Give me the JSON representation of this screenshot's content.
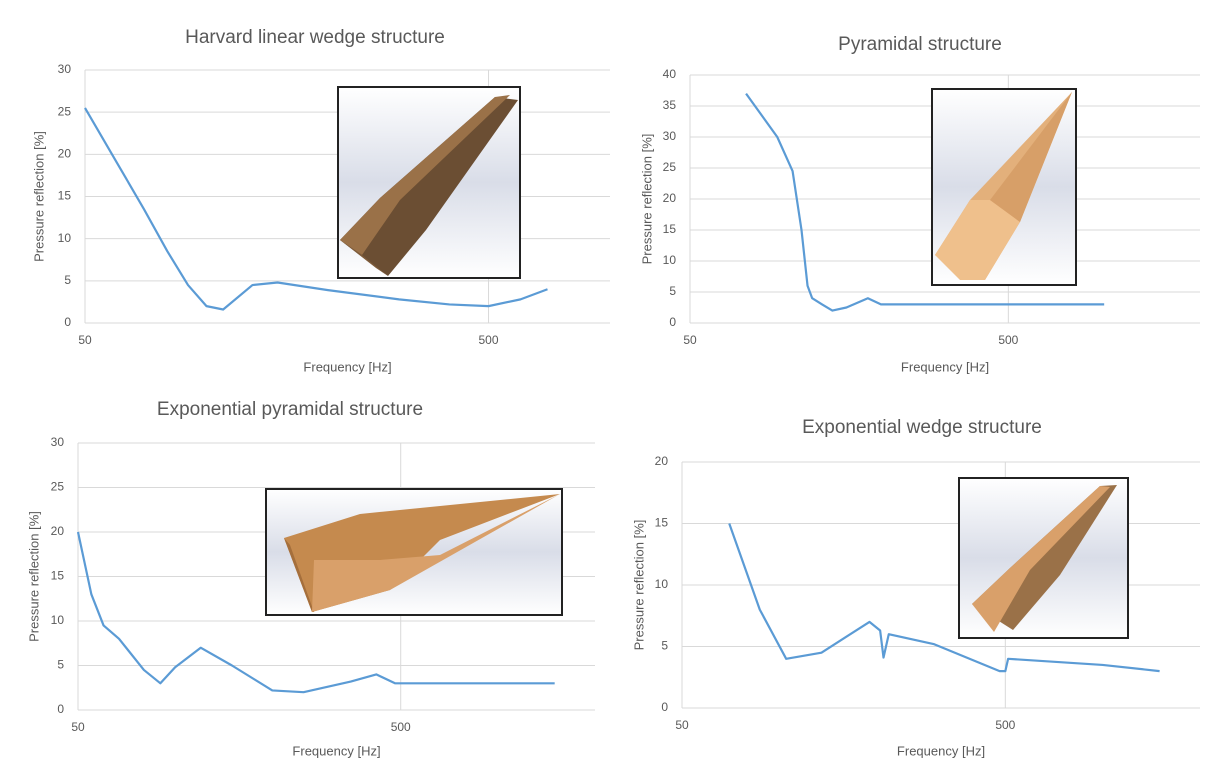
{
  "chart_data": [
    {
      "type": "line",
      "title": "Harvard linear wedge structure",
      "x_label": "Frequency [Hz]",
      "y_label": "Pressure reflection [%]",
      "log_x": true,
      "grid": true,
      "xlim": [
        50,
        1000
      ],
      "xticks": [
        50,
        500
      ],
      "ylim": [
        0,
        30
      ],
      "yticks": [
        0,
        5,
        10,
        15,
        20,
        25,
        30
      ],
      "series": [
        {
          "color": "#5b9bd5",
          "x": [
            50,
            60,
            70,
            80,
            90,
            100,
            110,
            130,
            150,
            200,
            300,
            400,
            500,
            600,
            700
          ],
          "values": [
            25.5,
            19,
            13.5,
            8.5,
            4.5,
            2,
            1.6,
            4.5,
            4.8,
            3.9,
            2.8,
            2.2,
            2,
            2.8,
            4
          ]
        }
      ]
    },
    {
      "type": "line",
      "title": "Pyramidal structure",
      "x_label": "Frequency [Hz]",
      "y_label": "Pressure reflection [%]",
      "log_x": true,
      "grid": true,
      "xlim": [
        50,
        2000
      ],
      "xticks": [
        50,
        500
      ],
      "ylim": [
        0,
        40
      ],
      "yticks": [
        0,
        5,
        10,
        15,
        20,
        25,
        30,
        35,
        40
      ],
      "series": [
        {
          "color": "#5b9bd5",
          "x": [
            75,
            94,
            105,
            112,
            117,
            121,
            130,
            140,
            155,
            181,
            199,
            500,
            1000
          ],
          "values": [
            37,
            30,
            24.5,
            15,
            6,
            4,
            3,
            2,
            2.5,
            4,
            3,
            3,
            3
          ]
        }
      ]
    },
    {
      "type": "line",
      "title": "Exponential pyramidal structure",
      "x_label": "Frequency [Hz]",
      "y_label": "Pressure reflection [%]",
      "log_x": true,
      "grid": true,
      "xlim": [
        50,
        2000
      ],
      "xticks": [
        50,
        500
      ],
      "ylim": [
        0,
        30
      ],
      "yticks": [
        0,
        5,
        10,
        15,
        20,
        25,
        30
      ],
      "series": [
        {
          "color": "#5b9bd5",
          "x": [
            50,
            55,
            60,
            67,
            80,
            90,
            100,
            120,
            150,
            200,
            250,
            350,
            420,
            480,
            1500
          ],
          "values": [
            20,
            13,
            9.5,
            8,
            4.5,
            3,
            4.8,
            7,
            5,
            2.2,
            2,
            3.2,
            4,
            3,
            3
          ]
        }
      ]
    },
    {
      "type": "line",
      "title": "Exponential wedge structure",
      "x_label": "Frequency [Hz]",
      "y_label": "Pressure reflection [%]",
      "log_x": true,
      "grid": true,
      "xlim": [
        50,
        2000
      ],
      "xticks": [
        50,
        500
      ],
      "ylim": [
        0,
        20
      ],
      "yticks": [
        0,
        5,
        10,
        15,
        20
      ],
      "series": [
        {
          "color": "#5b9bd5",
          "x": [
            70,
            87,
            105,
            135,
            190,
            205,
            210,
            218,
            300,
            480,
            500,
            510,
            1000,
            1500
          ],
          "values": [
            15,
            8,
            4,
            4.5,
            7,
            6.3,
            4.1,
            6,
            5.2,
            3,
            3,
            4,
            3.5,
            3
          ]
        }
      ]
    }
  ]
}
